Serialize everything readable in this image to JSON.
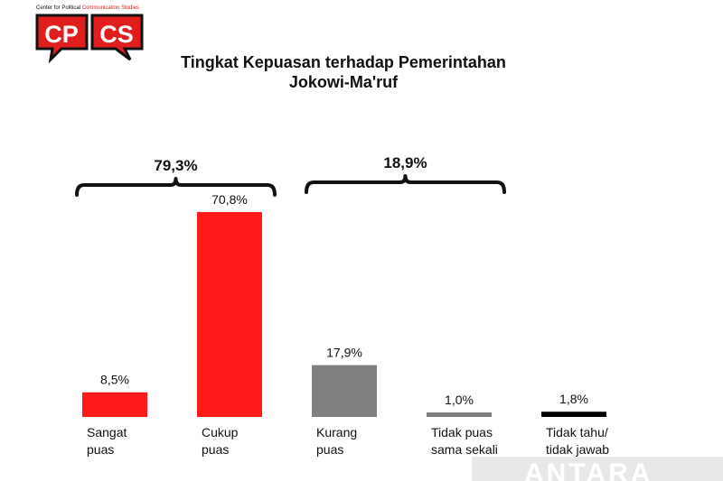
{
  "logo": {
    "tagline_left": "Center for Political",
    "tagline_right": "Communication Studies",
    "box1_text": "CP",
    "box2_text": "CS",
    "colors": {
      "red": "#e01e1e",
      "dark": "#111111"
    }
  },
  "title": {
    "line1": "Tingkat Kepuasan terhadap Pemerintahan",
    "line2": "Jokowi-Ma'ruf"
  },
  "chart_data": {
    "type": "bar",
    "title": "Tingkat Kepuasan terhadap Pemerintahan Jokowi-Ma'ruf",
    "categories": [
      [
        "Sangat",
        "puas"
      ],
      [
        "Cukup",
        "puas"
      ],
      [
        "Kurang",
        "puas"
      ],
      [
        "Tidak puas",
        "sama sekali"
      ],
      [
        "Tidak tahu/",
        "tidak jawab"
      ]
    ],
    "values": [
      8.5,
      70.8,
      17.9,
      1.0,
      1.8
    ],
    "value_labels": [
      "8,5%",
      "70,8%",
      "17,9%",
      "1,0%",
      "1,8%"
    ],
    "bar_colors": [
      "#ff1a1a",
      "#ff1a1a",
      "#808080",
      "#808080",
      "#000000"
    ],
    "groups": [
      {
        "label": "79,3%",
        "from": 0,
        "to": 1
      },
      {
        "label": "18,9%",
        "from": 2,
        "to": 3
      }
    ],
    "ylim": [
      0,
      70.8
    ],
    "grid": false,
    "legend": "none"
  },
  "watermark": {
    "text": "ANTARA"
  }
}
